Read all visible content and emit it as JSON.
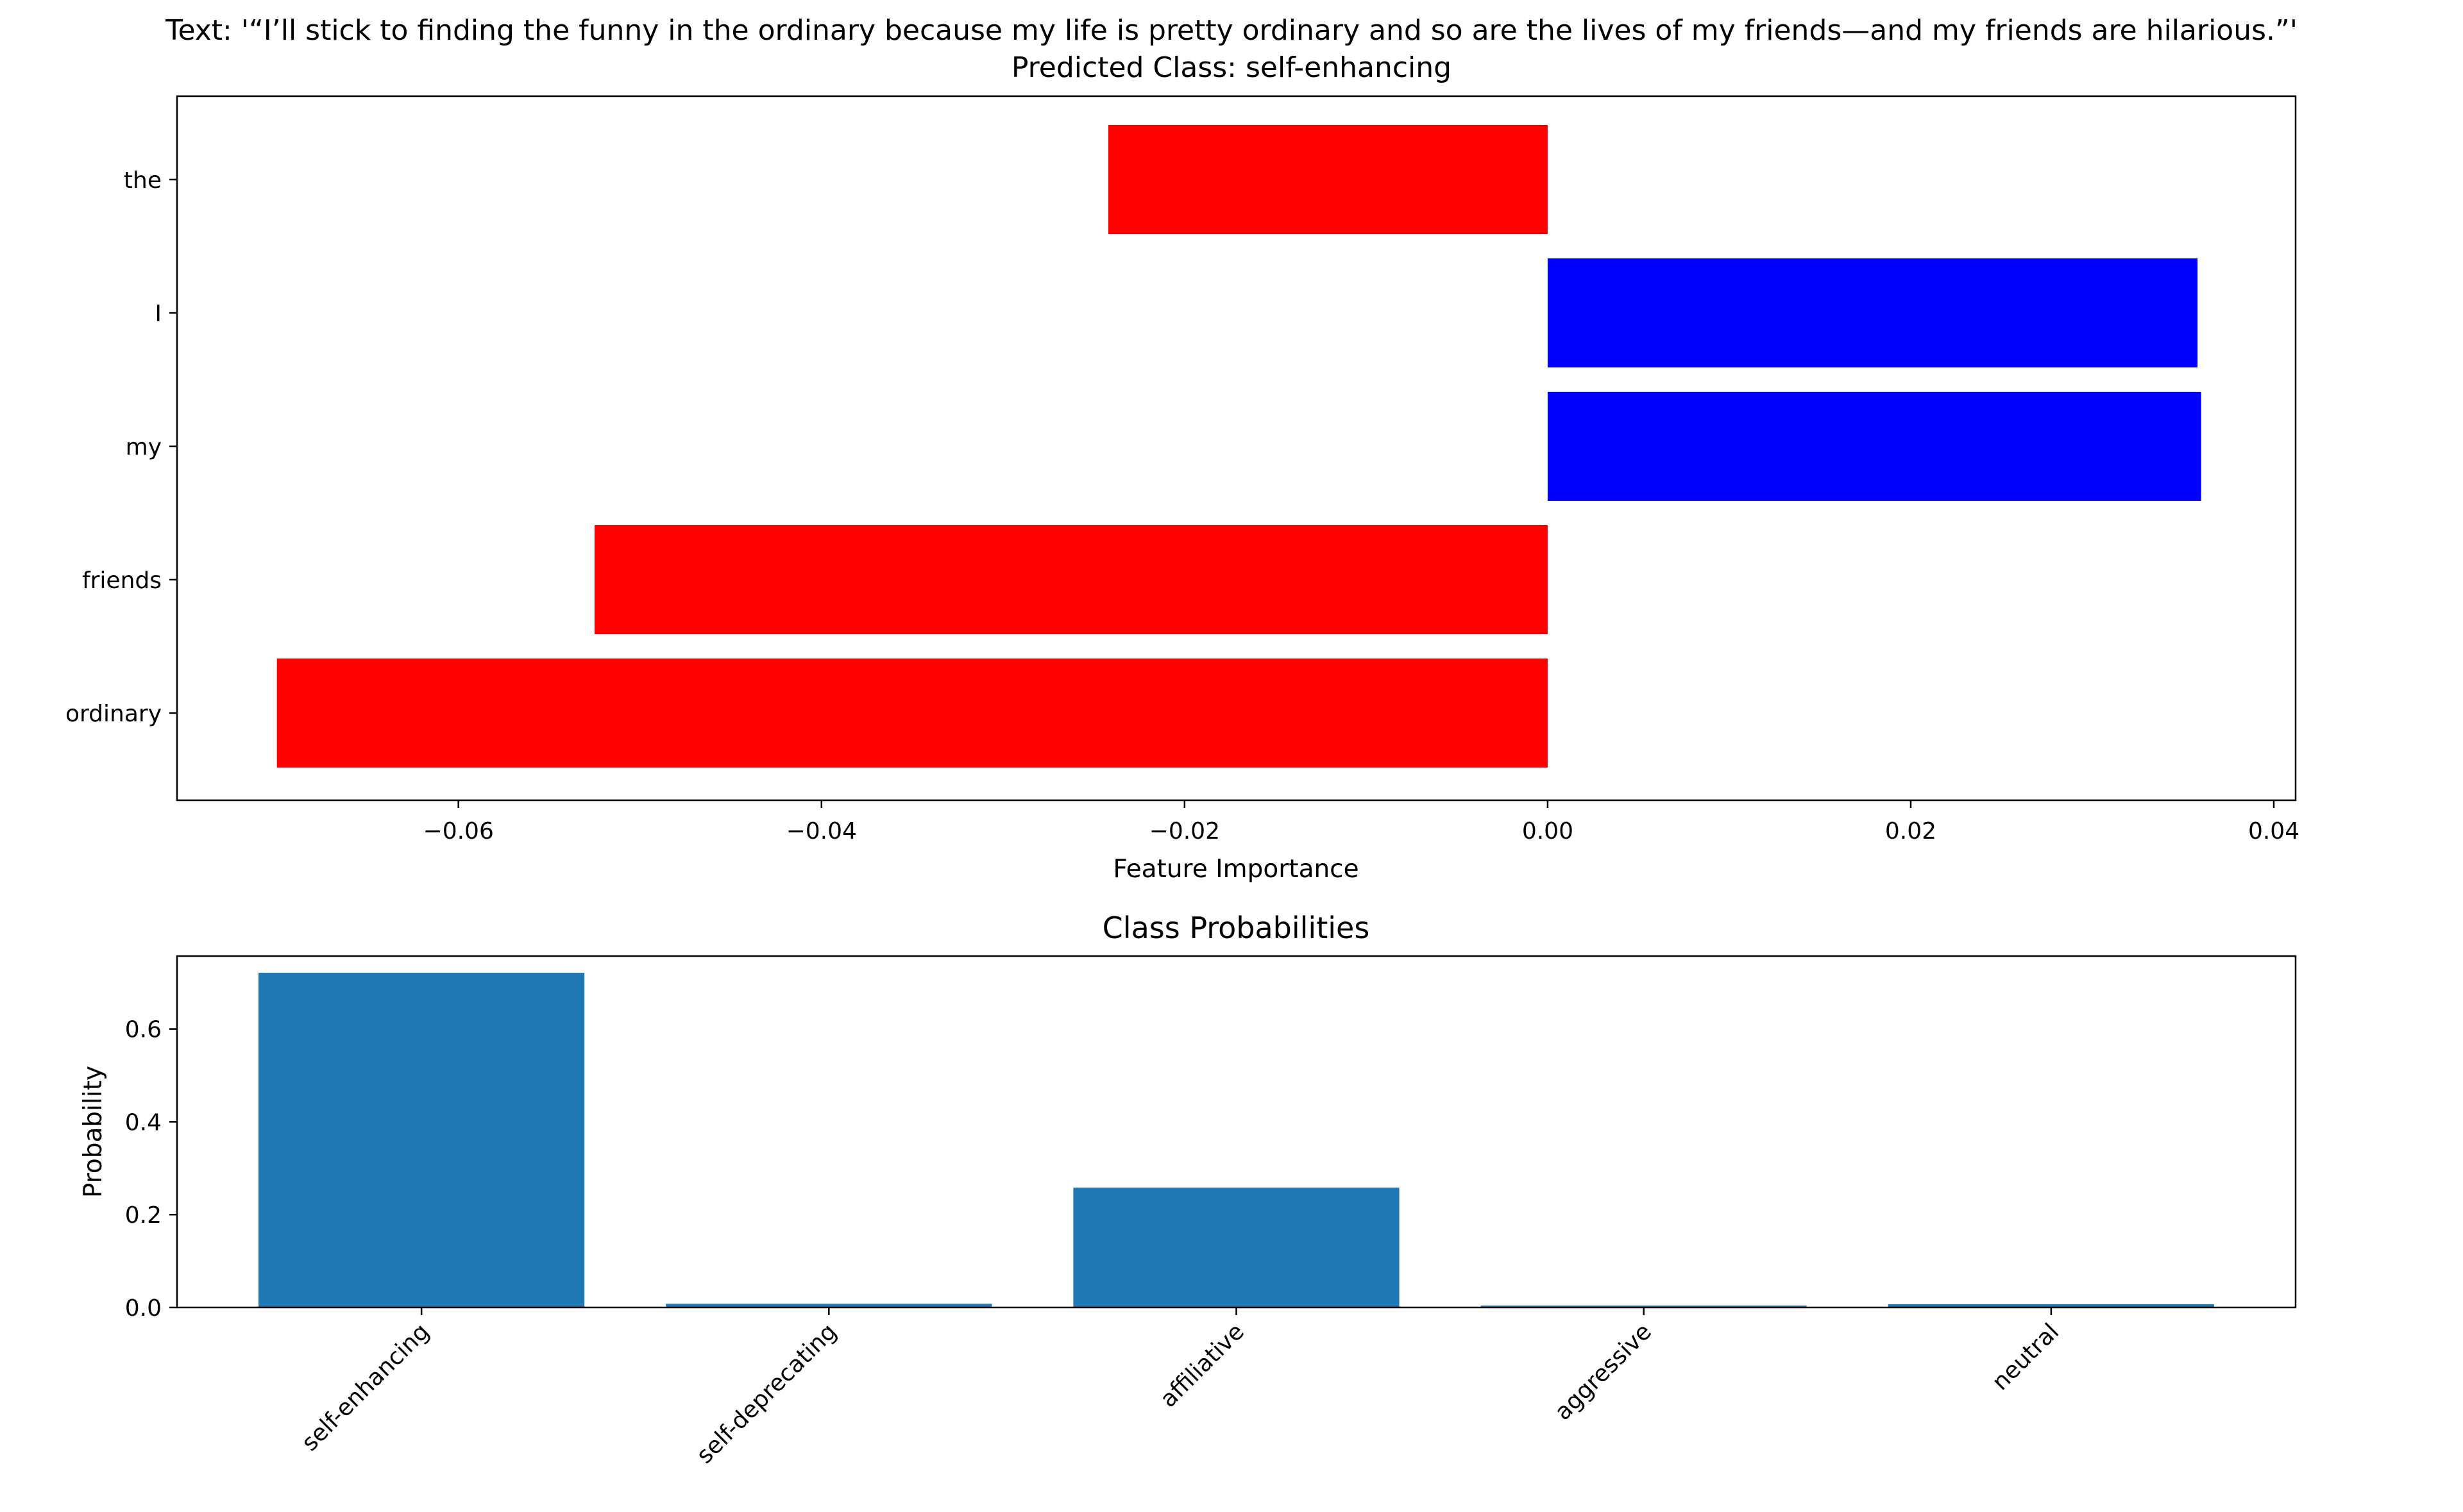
{
  "header": {
    "text_line": "Text: '“I’ll stick to finding the funny in the ordinary because my life is pretty ordinary and so are the lives of my friends—and my friends are hilarious.”'",
    "predicted_line": "Predicted Class: self-enhancing"
  },
  "chart_data": [
    {
      "type": "bar",
      "orientation": "horizontal",
      "title": "",
      "xlabel": "Feature Importance",
      "ylabel": "",
      "categories": [
        "ordinary",
        "friends",
        "my",
        "I",
        "the"
      ],
      "values": [
        -0.07,
        -0.0525,
        0.036,
        0.0358,
        -0.0242
      ],
      "colors": [
        "#ff0000",
        "#ff0000",
        "#0000ff",
        "#0000ff",
        "#ff0000"
      ],
      "xlim": [
        -0.0755,
        0.0412
      ],
      "xticks": [
        -0.06,
        -0.04,
        -0.02,
        0.0,
        0.02,
        0.04
      ],
      "xtick_labels": [
        "−0.06",
        "−0.04",
        "−0.02",
        "0.00",
        "0.02",
        "0.04"
      ],
      "grid": false
    },
    {
      "type": "bar",
      "title": "Class Probabilities",
      "xlabel": "",
      "ylabel": "Probability",
      "categories": [
        "self-enhancing",
        "self-deprecating",
        "affiliative",
        "aggressive",
        "neutral"
      ],
      "values": [
        0.721,
        0.008,
        0.258,
        0.004,
        0.007
      ],
      "color": "#1f77b4",
      "ylim": [
        0,
        0.757
      ],
      "yticks": [
        0.0,
        0.2,
        0.4,
        0.6
      ],
      "ytick_labels": [
        "0.0",
        "0.2",
        "0.4",
        "0.6"
      ],
      "grid": false
    }
  ]
}
